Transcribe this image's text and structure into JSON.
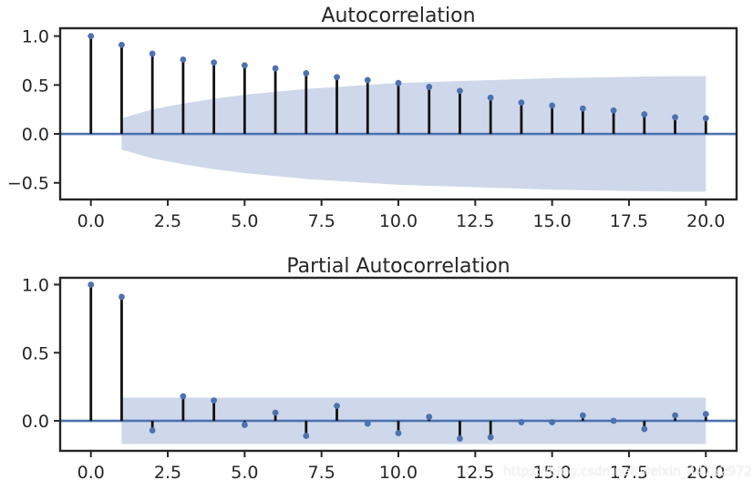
{
  "chart_data": [
    {
      "type": "stem",
      "title": "Autocorrelation",
      "x": [
        0,
        1,
        2,
        3,
        4,
        5,
        6,
        7,
        8,
        9,
        10,
        11,
        12,
        13,
        14,
        15,
        16,
        17,
        18,
        19,
        20
      ],
      "values": [
        1.0,
        0.91,
        0.82,
        0.76,
        0.73,
        0.7,
        0.67,
        0.62,
        0.58,
        0.55,
        0.52,
        0.48,
        0.44,
        0.37,
        0.32,
        0.29,
        0.26,
        0.24,
        0.2,
        0.17,
        0.16
      ],
      "confidence_band": {
        "x": [
          1,
          2,
          3,
          4,
          5,
          6,
          7,
          8,
          9,
          10,
          11,
          12,
          13,
          14,
          15,
          16,
          17,
          18,
          19,
          20
        ],
        "upper": [
          0.16,
          0.25,
          0.31,
          0.36,
          0.4,
          0.43,
          0.46,
          0.48,
          0.5,
          0.52,
          0.53,
          0.54,
          0.55,
          0.56,
          0.57,
          0.575,
          0.58,
          0.585,
          0.59,
          0.59
        ],
        "lower": [
          -0.16,
          -0.25,
          -0.31,
          -0.36,
          -0.4,
          -0.43,
          -0.46,
          -0.48,
          -0.5,
          -0.52,
          -0.53,
          -0.54,
          -0.55,
          -0.56,
          -0.57,
          -0.575,
          -0.58,
          -0.585,
          -0.59,
          -0.59
        ]
      },
      "xlim": [
        -1,
        21
      ],
      "ylim": [
        -0.67,
        1.08
      ],
      "xticks": [
        0,
        2.5,
        5,
        7.5,
        10,
        12.5,
        15,
        17.5,
        20
      ],
      "xtick_labels": [
        "0.0",
        "2.5",
        "5.0",
        "7.5",
        "10.0",
        "12.5",
        "15.0",
        "17.5",
        "20.0"
      ],
      "yticks": [
        1.0,
        0.5,
        0.0,
        -0.5
      ],
      "ytick_labels": [
        "1.0",
        "0.5",
        "0.0",
        "−0.5"
      ],
      "grid": false,
      "colors": {
        "stem": "#111111",
        "marker": "#4c72b0",
        "zero_line": "#4c72b0",
        "band": "#ced8ea",
        "axes": "#262626"
      }
    },
    {
      "type": "stem",
      "title": "Partial Autocorrelation",
      "x": [
        0,
        1,
        2,
        3,
        4,
        5,
        6,
        7,
        8,
        9,
        10,
        11,
        12,
        13,
        14,
        15,
        16,
        17,
        18,
        19,
        20
      ],
      "values": [
        1.0,
        0.91,
        -0.07,
        0.18,
        0.15,
        -0.03,
        0.06,
        -0.11,
        0.11,
        -0.02,
        -0.09,
        0.03,
        -0.13,
        -0.12,
        -0.01,
        -0.01,
        0.04,
        0.0,
        -0.06,
        0.04,
        0.05
      ],
      "confidence_band": {
        "x": [
          1,
          20
        ],
        "upper": [
          0.17,
          0.17
        ],
        "lower": [
          -0.17,
          -0.17
        ]
      },
      "xlim": [
        -1,
        21
      ],
      "ylim": [
        -0.22,
        1.05
      ],
      "xticks": [
        0,
        2.5,
        5,
        7.5,
        10,
        12.5,
        15,
        17.5,
        20
      ],
      "xtick_labels": [
        "0.0",
        "2.5",
        "5.0",
        "7.5",
        "10.0",
        "12.5",
        "15.0",
        "17.5",
        "20.0"
      ],
      "yticks": [
        1.0,
        0.5,
        0.0
      ],
      "ytick_labels": [
        "1.0",
        "0.5",
        "0.0"
      ],
      "grid": false,
      "colors": {
        "stem": "#111111",
        "marker": "#4c72b0",
        "zero_line": "#4c72b0",
        "band": "#ced8ea",
        "axes": "#262626"
      }
    }
  ],
  "watermark": "https://blog.csdn.net/weixin_44712972"
}
